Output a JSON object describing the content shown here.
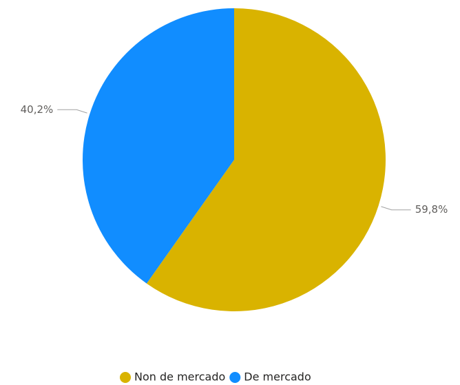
{
  "chart_data": {
    "type": "pie",
    "categories": [
      "Non de mercado",
      "De mercado"
    ],
    "values": [
      59.8,
      40.2
    ],
    "value_labels": [
      "59,8%",
      "40,2%"
    ],
    "colors": [
      "#D9B300",
      "#118DFF"
    ],
    "legend": "bottom"
  }
}
